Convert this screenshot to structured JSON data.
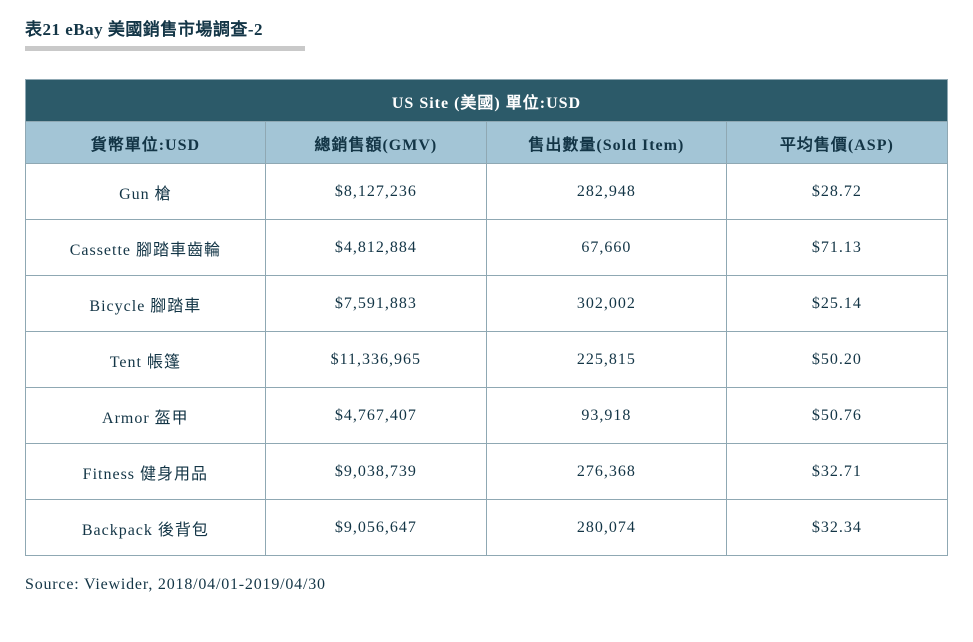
{
  "title": "表21 eBay 美國銷售市場調查-2",
  "mainHeader": "US Site (美國) 單位:USD",
  "columns": [
    "貨幣單位:USD",
    "總銷售額(GMV)",
    "售出數量(Sold Item)",
    "平均售價(ASP)"
  ],
  "rows": [
    [
      "Gun 槍",
      "$8,127,236",
      "282,948",
      "$28.72"
    ],
    [
      "Cassette 腳踏車齒輪",
      "$4,812,884",
      "67,660",
      "$71.13"
    ],
    [
      "Bicycle 腳踏車",
      "$7,591,883",
      "302,002",
      "$25.14"
    ],
    [
      "Tent 帳篷",
      "$11,336,965",
      "225,815",
      "$50.20"
    ],
    [
      "Armor 盔甲",
      "$4,767,407",
      "93,918",
      "$50.76"
    ],
    [
      "Fitness 健身用品",
      "$9,038,739",
      "276,368",
      "$32.71"
    ],
    [
      "Backpack 後背包",
      "$9,056,647",
      "280,074",
      "$32.34"
    ]
  ],
  "source": "Source: Viewider, 2018/04/01-2019/04/30",
  "colors": {
    "mainHeaderBg": "#2c5a69",
    "subHeaderBg": "#a3c5d6",
    "border": "#8fa8b3",
    "text": "#133546",
    "underline": "#c9c9c9",
    "background": "#ffffff"
  },
  "colWidths": [
    "26%",
    "24%",
    "26%",
    "24%"
  ]
}
